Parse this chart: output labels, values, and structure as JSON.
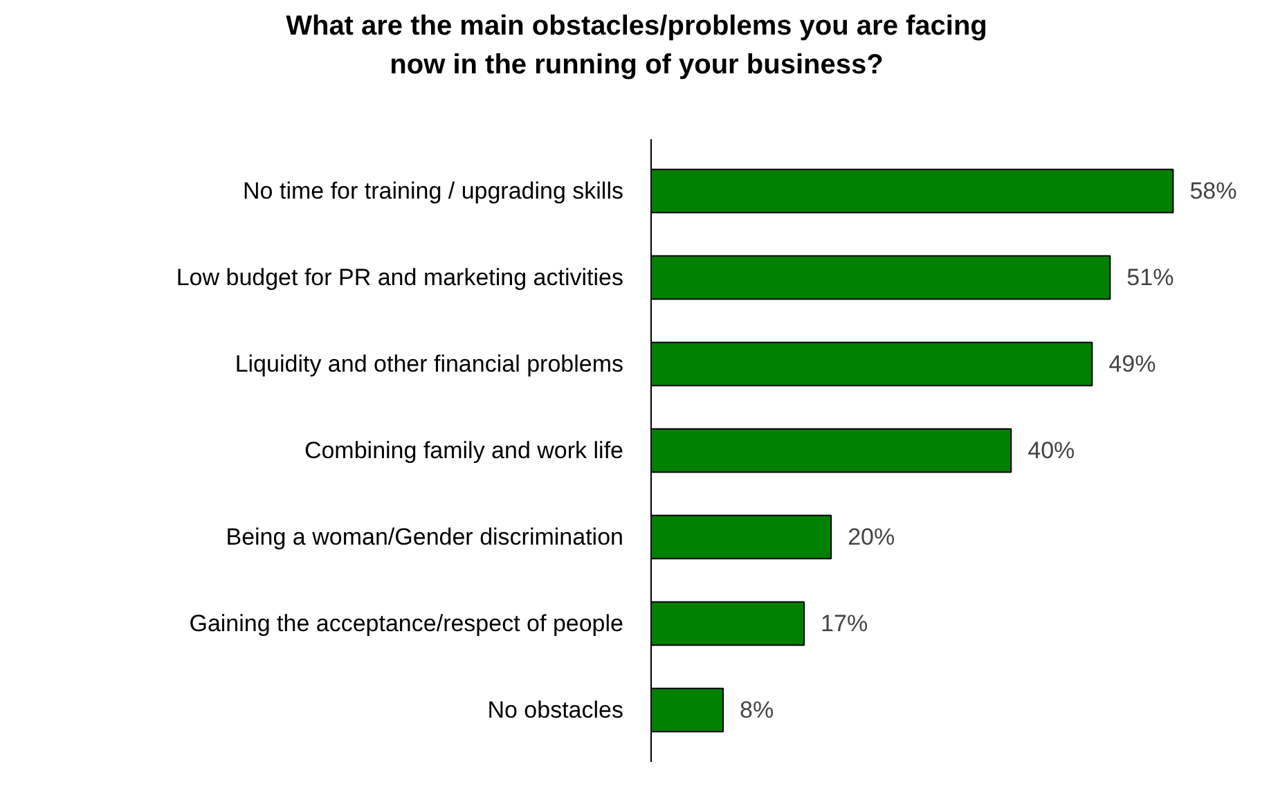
{
  "chart_data": {
    "type": "bar",
    "orientation": "horizontal",
    "title": "What are the main obstacles/problems you are facing\nnow in the running of your business?",
    "categories": [
      "No time for training / upgrading skills",
      "Low budget for PR and marketing activities",
      "Liquidity and other financial problems",
      "Combining family and work life",
      "Being a woman/Gender discrimination",
      "Gaining the acceptance/respect of people",
      "No obstacles"
    ],
    "values": [
      58,
      51,
      49,
      40,
      20,
      17,
      8
    ],
    "value_labels": [
      "58%",
      "51%",
      "49%",
      "40%",
      "20%",
      "17%",
      "8%"
    ],
    "color": "#008000",
    "tick_labels": "y",
    "grid": false
  }
}
